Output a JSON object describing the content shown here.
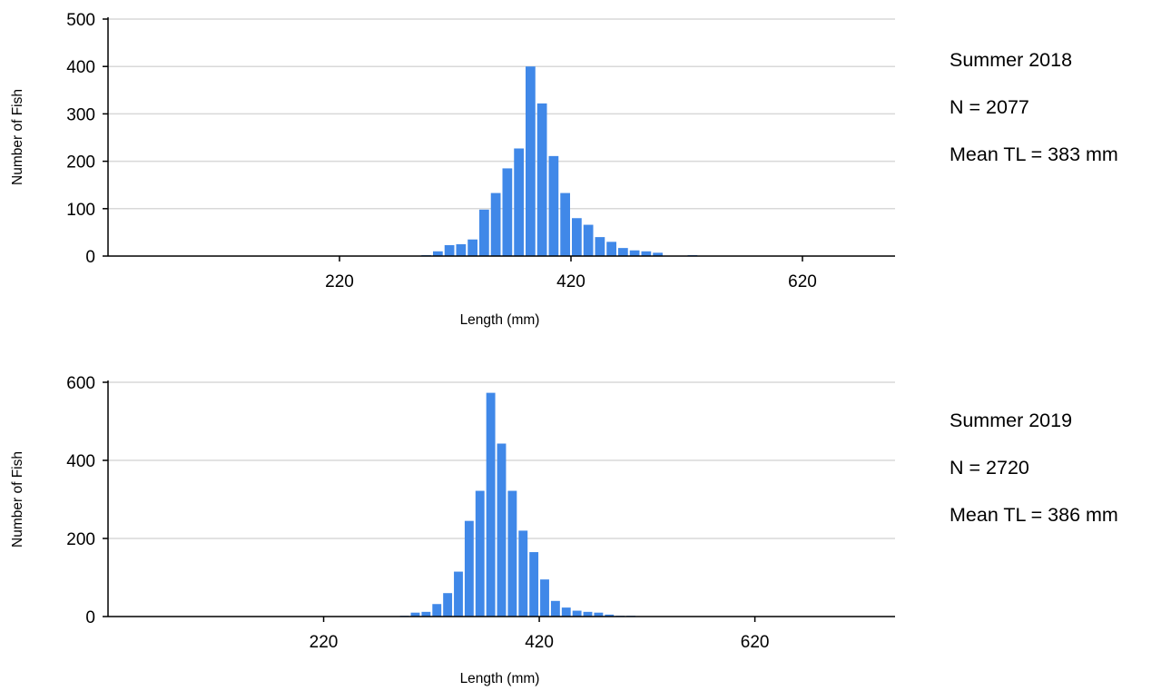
{
  "colors": {
    "bar": "#4088e8",
    "grid": "#d9d9d9",
    "axis": "#000000"
  },
  "panels": [
    {
      "info": {
        "season": "Summer 2018",
        "n": "N = 2077",
        "mean": "Mean TL = 383 mm"
      },
      "chart_data": {
        "type": "bar",
        "title": "",
        "xlabel": "Length (mm)",
        "ylabel": "Number of Fish",
        "xlim": [
          20,
          700
        ],
        "ylim": [
          0,
          500
        ],
        "x_ticks": [
          220,
          420,
          620
        ],
        "y_ticks": [
          0,
          100,
          200,
          300,
          400,
          500
        ],
        "grid": true,
        "bin_width": 10,
        "x": [
          280,
          290,
          300,
          310,
          320,
          330,
          340,
          350,
          360,
          370,
          380,
          390,
          400,
          410,
          420,
          430,
          440,
          450,
          460,
          470,
          480,
          490,
          500,
          510,
          520,
          530
        ],
        "values": [
          0,
          2,
          10,
          23,
          25,
          35,
          98,
          133,
          185,
          227,
          400,
          322,
          211,
          133,
          80,
          66,
          40,
          30,
          17,
          12,
          10,
          7,
          0,
          0,
          2,
          0
        ]
      }
    },
    {
      "info": {
        "season": "Summer 2019",
        "n": "N = 2720",
        "mean": "Mean TL = 386 mm"
      },
      "chart_data": {
        "type": "bar",
        "title": "",
        "xlabel": "Length (mm)",
        "ylabel": "Number of Fish",
        "xlim": [
          20,
          750
        ],
        "ylim": [
          0,
          600
        ],
        "x_ticks": [
          220,
          420,
          620
        ],
        "y_ticks": [
          0,
          200,
          400,
          600
        ],
        "grid": true,
        "bin_width": 10,
        "x": [
          270,
          280,
          290,
          300,
          310,
          320,
          330,
          340,
          350,
          360,
          370,
          380,
          390,
          400,
          410,
          420,
          430,
          440,
          450,
          460,
          470,
          480,
          490,
          500,
          510
        ],
        "values": [
          0,
          0,
          2,
          10,
          12,
          32,
          60,
          115,
          245,
          322,
          573,
          443,
          322,
          220,
          165,
          95,
          40,
          23,
          15,
          12,
          10,
          5,
          2,
          2,
          0
        ]
      }
    }
  ]
}
